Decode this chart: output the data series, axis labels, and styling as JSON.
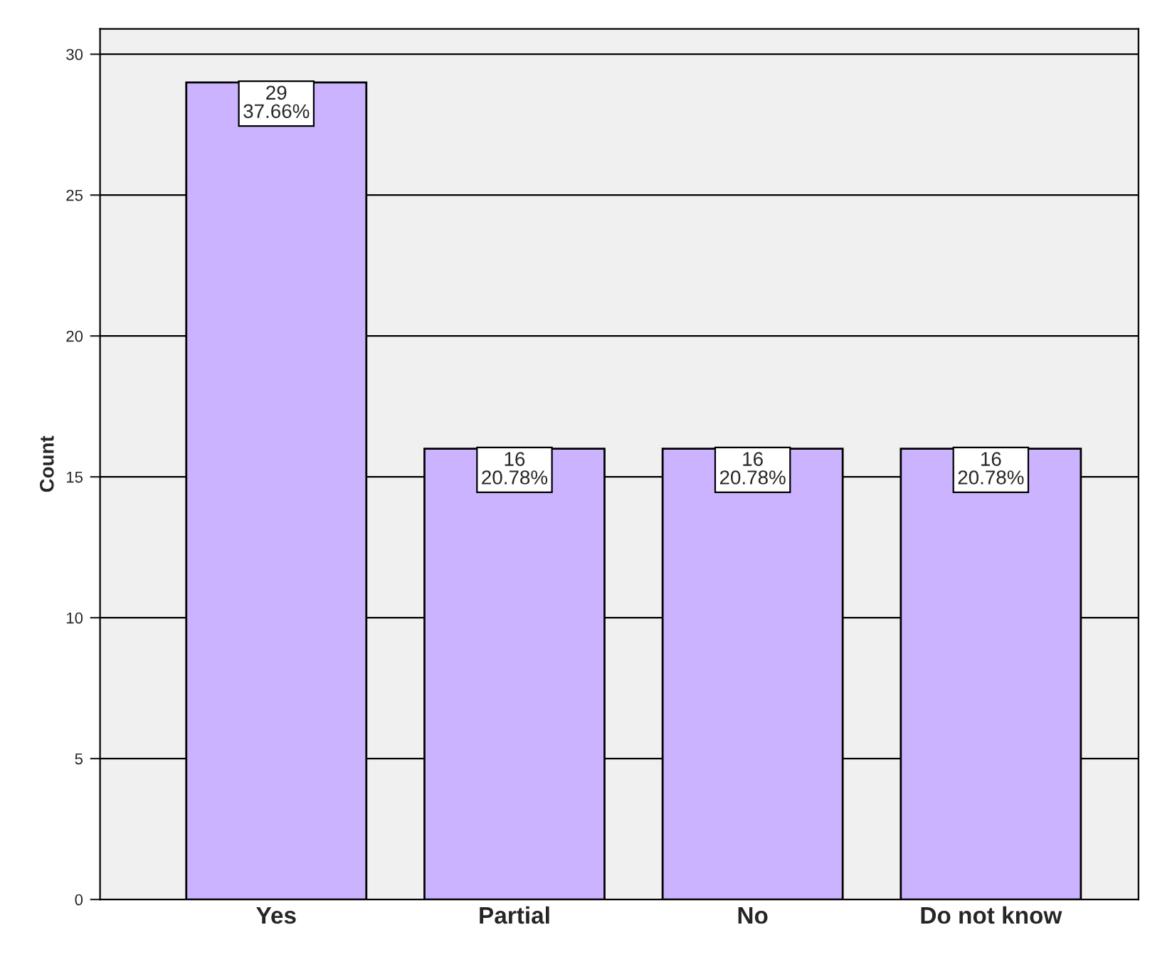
{
  "chart_data": {
    "type": "bar",
    "ylabel": "Count",
    "categories": [
      "Yes",
      "Partial",
      "No",
      "Do not know"
    ],
    "values": [
      29,
      16,
      16,
      16
    ],
    "value_labels": [
      "29\n37.66%",
      "16\n20.78%",
      "16\n20.78%",
      "16\n20.78%"
    ],
    "color": "#ccb3ff",
    "ylim": [
      0,
      30.9
    ],
    "yticks": [
      0,
      5,
      10,
      15,
      20,
      25,
      30
    ],
    "grid": "y",
    "legend": false
  }
}
